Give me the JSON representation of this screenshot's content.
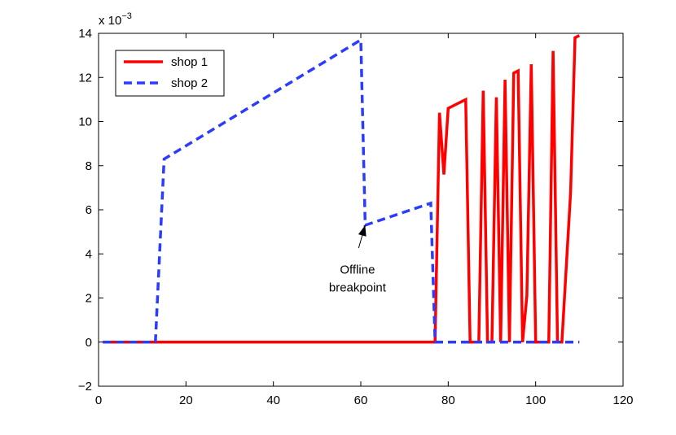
{
  "chart_data": {
    "type": "line",
    "title": "",
    "xlabel": "",
    "ylabel": "",
    "y_scale_note": "x 10",
    "y_scale_exponent": "−3",
    "xlim": [
      0,
      120
    ],
    "ylim": [
      -2,
      14
    ],
    "xticks": [
      0,
      20,
      40,
      60,
      80,
      100,
      120
    ],
    "yticks": [
      -2,
      0,
      2,
      4,
      6,
      8,
      10,
      12,
      14
    ],
    "ytick_labels": [
      "−2",
      "0",
      "2",
      "4",
      "6",
      "8",
      "10",
      "12",
      "14"
    ],
    "xtick_labels": [
      "0",
      "20",
      "40",
      "60",
      "80",
      "100",
      "120"
    ],
    "grid": false,
    "legend": {
      "position": "top-left"
    },
    "series": [
      {
        "name": "shop 1",
        "color": "#ff0000",
        "style": "solid",
        "points": [
          [
            1,
            0
          ],
          [
            77,
            0
          ],
          [
            78,
            10.4
          ],
          [
            79,
            7.6
          ],
          [
            80,
            10.6
          ],
          [
            84,
            11.0
          ],
          [
            85,
            0
          ],
          [
            87,
            0
          ],
          [
            88,
            11.4
          ],
          [
            89,
            0
          ],
          [
            90,
            0
          ],
          [
            91,
            11.1
          ],
          [
            92,
            0
          ],
          [
            93,
            11.9
          ],
          [
            94,
            0
          ],
          [
            95,
            12.2
          ],
          [
            96,
            12.3
          ],
          [
            97,
            0
          ],
          [
            98,
            2.1
          ],
          [
            99,
            12.6
          ],
          [
            100,
            0
          ],
          [
            103,
            0
          ],
          [
            104,
            13.2
          ],
          [
            105,
            0
          ],
          [
            106,
            0
          ],
          [
            108,
            6.8
          ],
          [
            109,
            13.8
          ],
          [
            110,
            13.9
          ]
        ]
      },
      {
        "name": "shop 2",
        "color": "#2b3cff",
        "style": "dashed",
        "points": [
          [
            1,
            0
          ],
          [
            13,
            0
          ],
          [
            15,
            8.3
          ],
          [
            60,
            13.7
          ],
          [
            61,
            5.3
          ],
          [
            76,
            6.3
          ],
          [
            77,
            0
          ],
          [
            110,
            0
          ]
        ]
      }
    ],
    "annotations": [
      {
        "text_line1": "Offline",
        "text_line2": "breakpoint",
        "target": [
          61,
          5.3
        ],
        "text_at": [
          57,
          3.1
        ]
      }
    ]
  }
}
